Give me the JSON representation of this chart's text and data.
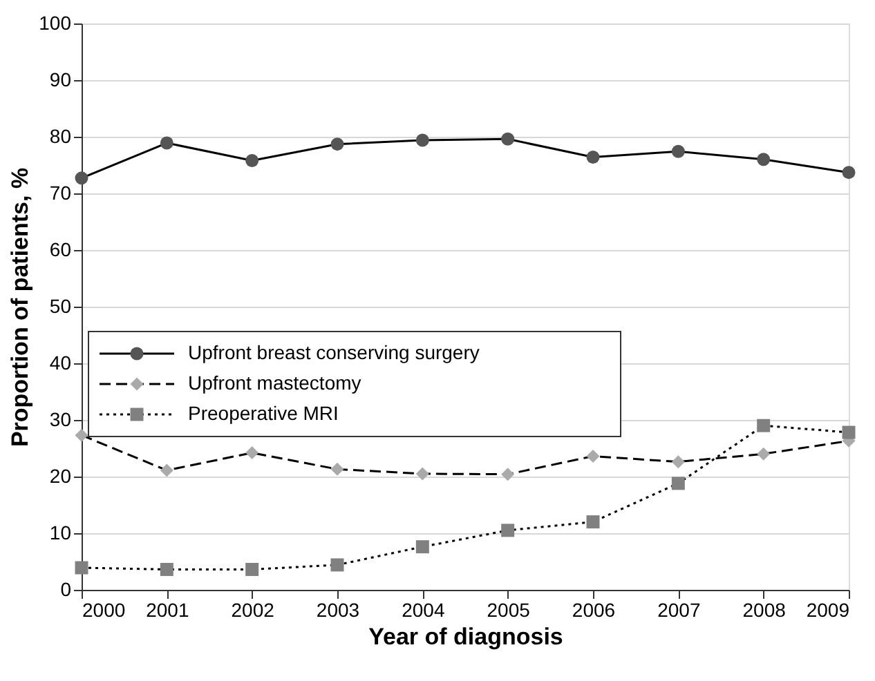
{
  "chart_data": {
    "type": "line",
    "xlabel": "Year of diagnosis",
    "ylabel": "Proportion of patients, %",
    "x": [
      2000,
      2001,
      2002,
      2003,
      2004,
      2005,
      2006,
      2007,
      2008,
      2009
    ],
    "xlim": [
      2000,
      2009
    ],
    "xticks": [
      2000,
      2001,
      2002,
      2003,
      2004,
      2005,
      2006,
      2007,
      2008,
      2009
    ],
    "ylim": [
      0,
      100
    ],
    "yticks": [
      0,
      10,
      20,
      30,
      40,
      50,
      60,
      70,
      80,
      90,
      100
    ],
    "grid": "y",
    "legend": "left",
    "series": [
      {
        "name": "Upfront breast conserving surgery",
        "color": "#555555",
        "marker": "circle",
        "line_style": "solid",
        "values": [
          72.7,
          78.9,
          75.8,
          78.7,
          79.4,
          79.6,
          76.4,
          77.4,
          76.0,
          73.7
        ]
      },
      {
        "name": "Upfront mastectomy",
        "color": "#aaaaaa",
        "marker": "diamond",
        "line_style": "dashed",
        "values": [
          27.3,
          21.1,
          24.2,
          21.3,
          20.5,
          20.4,
          23.6,
          22.6,
          24.0,
          26.3
        ]
      },
      {
        "name": "Preoperative MRI",
        "color": "#808080",
        "marker": "square",
        "line_style": "dotted",
        "values": [
          3.9,
          3.6,
          3.6,
          4.4,
          7.6,
          10.5,
          12.0,
          18.8,
          29.0,
          27.8
        ]
      }
    ]
  }
}
